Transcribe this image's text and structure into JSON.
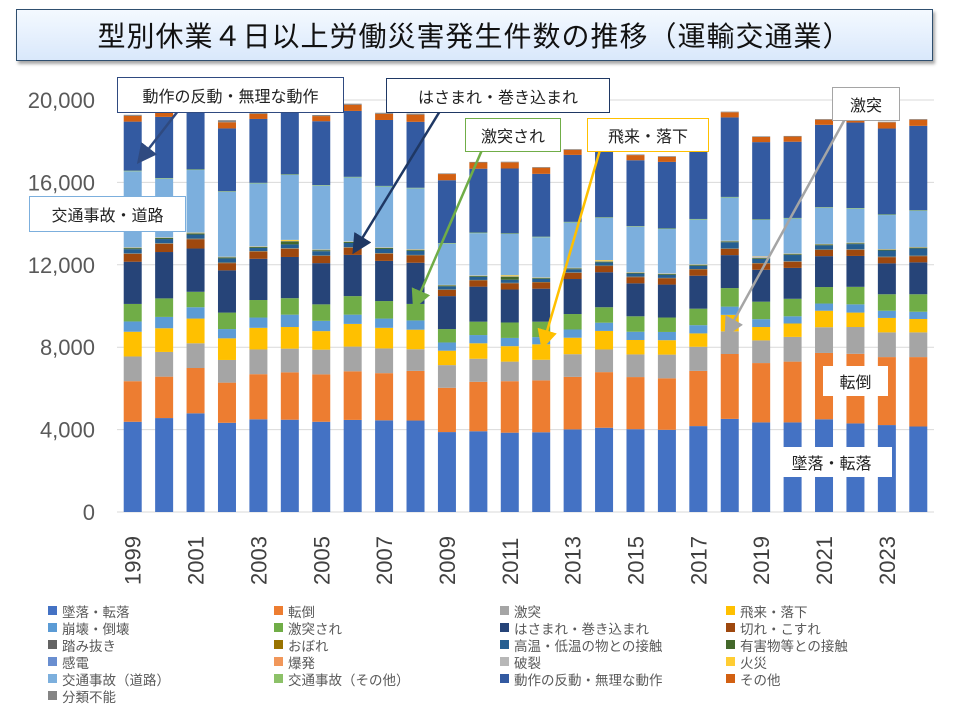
{
  "title": "型別休業４日以上労働災害発生件数の推移（運輸交通業）",
  "chart_data": {
    "type": "bar",
    "stacked": true,
    "title": "型別休業４日以上労働災害発生件数の推移（運輸交通業）",
    "xlabel": "",
    "ylabel": "",
    "ylim": [
      0,
      20000
    ],
    "yticks": [
      "0",
      "4,000",
      "8,000",
      "12,000",
      "16,000",
      "20,000"
    ],
    "ytick_values": [
      0,
      4000,
      8000,
      12000,
      16000,
      20000
    ],
    "grid": true,
    "legend_position": "bottom",
    "categories": [
      "1999",
      "2000",
      "2001",
      "2002",
      "2003",
      "2004",
      "2005",
      "2006",
      "2007",
      "2008",
      "2009",
      "2010",
      "2011",
      "2012",
      "2013",
      "2014",
      "2015",
      "2016",
      "2017",
      "2018",
      "2019",
      "2020",
      "2021",
      "2022",
      "2023",
      "2024"
    ],
    "xtick_labels": [
      "1999",
      "",
      "2001",
      "",
      "2003",
      "",
      "2005",
      "",
      "2007",
      "",
      "2009",
      "",
      "2011",
      "",
      "2013",
      "",
      "2015",
      "",
      "2017",
      "",
      "2019",
      "",
      "2021",
      "",
      "2023",
      ""
    ],
    "series": [
      {
        "name": "墜落・転落",
        "color": "#4472c4",
        "values": [
          4380,
          4560,
          4790,
          4330,
          4500,
          4480,
          4380,
          4470,
          4450,
          4440,
          3880,
          3920,
          3850,
          3870,
          4010,
          4090,
          4020,
          3990,
          4170,
          4520,
          4350,
          4350,
          4500,
          4300,
          4220,
          4150
        ]
      },
      {
        "name": "転倒",
        "color": "#ed7d31",
        "values": [
          1970,
          2010,
          2200,
          1950,
          2190,
          2300,
          2300,
          2360,
          2290,
          2410,
          2150,
          2400,
          2500,
          2520,
          2550,
          2700,
          2530,
          2500,
          2680,
          3150,
          2880,
          2950,
          3220,
          3380,
          3300,
          3370
        ]
      },
      {
        "name": "激突",
        "color": "#a5a5a5",
        "values": [
          1200,
          1200,
          1200,
          1100,
          1200,
          1150,
          1200,
          1200,
          1200,
          1050,
          1100,
          1120,
          950,
          1000,
          1100,
          1100,
          1100,
          1150,
          1170,
          1100,
          1100,
          1200,
          1250,
          1300,
          1200,
          1200
        ]
      },
      {
        "name": "飛来・落下",
        "color": "#ffc000",
        "values": [
          1200,
          1150,
          1200,
          1050,
          1050,
          1050,
          900,
          1100,
          1000,
          950,
          700,
          750,
          750,
          750,
          800,
          900,
          700,
          700,
          650,
          800,
          650,
          650,
          800,
          700,
          700,
          650
        ]
      },
      {
        "name": "崩壊・倒壊",
        "color": "#5b9bd5",
        "values": [
          500,
          550,
          550,
          450,
          500,
          600,
          500,
          450,
          450,
          450,
          400,
          400,
          400,
          350,
          400,
          400,
          400,
          400,
          400,
          400,
          380,
          350,
          350,
          400,
          350,
          350
        ]
      },
      {
        "name": "激突され",
        "color": "#70ad47",
        "values": [
          850,
          900,
          750,
          800,
          850,
          800,
          800,
          900,
          850,
          800,
          650,
          650,
          750,
          750,
          750,
          750,
          750,
          700,
          800,
          900,
          850,
          850,
          800,
          850,
          800,
          850
        ]
      },
      {
        "name": "はさまれ・巻き込まれ",
        "color": "#264478",
        "values": [
          2050,
          2250,
          2100,
          2050,
          2000,
          2000,
          2000,
          2000,
          1950,
          2000,
          1600,
          1700,
          1600,
          1600,
          1700,
          1700,
          1600,
          1600,
          1600,
          1600,
          1550,
          1500,
          1500,
          1500,
          1500,
          1550
        ]
      },
      {
        "name": "切れ・こすれ",
        "color": "#9e480e",
        "values": [
          380,
          400,
          450,
          350,
          350,
          400,
          350,
          350,
          350,
          350,
          300,
          300,
          300,
          300,
          300,
          300,
          300,
          300,
          300,
          300,
          300,
          300,
          300,
          300,
          300,
          300
        ]
      },
      {
        "name": "踏み抜き",
        "color": "#636363",
        "values": [
          20,
          20,
          20,
          20,
          20,
          20,
          20,
          20,
          20,
          20,
          15,
          15,
          15,
          15,
          15,
          15,
          15,
          15,
          15,
          15,
          15,
          15,
          15,
          15,
          15,
          15
        ]
      },
      {
        "name": "おぼれ",
        "color": "#997300",
        "values": [
          10,
          10,
          10,
          10,
          10,
          10,
          10,
          10,
          10,
          10,
          10,
          10,
          10,
          10,
          10,
          10,
          10,
          10,
          10,
          10,
          10,
          10,
          10,
          10,
          10,
          10
        ]
      },
      {
        "name": "高温・低温の物との接触",
        "color": "#255e91",
        "values": [
          200,
          200,
          200,
          200,
          150,
          180,
          200,
          200,
          200,
          200,
          150,
          150,
          150,
          150,
          150,
          150,
          150,
          150,
          150,
          300,
          200,
          300,
          200,
          250,
          300,
          350
        ]
      },
      {
        "name": "有害物等との接触",
        "color": "#43682b",
        "values": [
          50,
          50,
          50,
          50,
          50,
          150,
          50,
          50,
          50,
          50,
          40,
          40,
          150,
          40,
          40,
          40,
          40,
          40,
          40,
          40,
          40,
          40,
          40,
          40,
          40,
          40
        ]
      },
      {
        "name": "感電",
        "color": "#698ed0",
        "values": [
          5,
          5,
          5,
          5,
          5,
          5,
          5,
          5,
          5,
          5,
          5,
          5,
          5,
          5,
          5,
          5,
          5,
          5,
          5,
          5,
          5,
          5,
          5,
          5,
          5,
          5
        ]
      },
      {
        "name": "爆発",
        "color": "#f1975a",
        "values": [
          5,
          5,
          5,
          5,
          5,
          5,
          5,
          5,
          5,
          5,
          5,
          5,
          5,
          5,
          5,
          5,
          5,
          5,
          5,
          5,
          5,
          5,
          5,
          5,
          5,
          5
        ]
      },
      {
        "name": "破裂",
        "color": "#b7b7b7",
        "values": [
          10,
          10,
          10,
          10,
          10,
          10,
          10,
          10,
          10,
          10,
          10,
          10,
          10,
          10,
          10,
          10,
          10,
          10,
          10,
          10,
          80,
          10,
          10,
          10,
          10,
          10
        ]
      },
      {
        "name": "火災",
        "color": "#ffcd33",
        "values": [
          10,
          10,
          20,
          10,
          10,
          50,
          10,
          10,
          10,
          10,
          10,
          10,
          50,
          10,
          10,
          50,
          10,
          10,
          10,
          10,
          10,
          10,
          10,
          10,
          10,
          10
        ]
      },
      {
        "name": "交通事故（道路）",
        "color": "#7cafdd",
        "values": [
          3700,
          2850,
          3040,
          3150,
          3050,
          3150,
          3100,
          3100,
          2950,
          2950,
          2000,
          2050,
          2000,
          1950,
          2200,
          2050,
          2200,
          2150,
          2180,
          2100,
          1750,
          1700,
          1750,
          1650,
          1650,
          1750
        ]
      },
      {
        "name": "交通事故（その他）",
        "color": "#8cc168",
        "values": [
          30,
          30,
          30,
          30,
          30,
          30,
          30,
          30,
          30,
          30,
          30,
          30,
          30,
          30,
          30,
          30,
          30,
          30,
          30,
          30,
          30,
          30,
          30,
          30,
          30,
          30
        ]
      },
      {
        "name": "動作の反動・無理な動作",
        "color": "#335aa1",
        "values": [
          2380,
          2970,
          3000,
          3050,
          3100,
          3250,
          3100,
          3200,
          3200,
          3200,
          3050,
          3100,
          3150,
          3050,
          3250,
          3200,
          3200,
          3230,
          3270,
          3860,
          3750,
          3700,
          4000,
          4150,
          4170,
          4100
        ]
      },
      {
        "name": "その他",
        "color": "#d26012",
        "values": [
          280,
          350,
          300,
          300,
          250,
          300,
          250,
          300,
          300,
          350,
          300,
          300,
          300,
          300,
          250,
          250,
          250,
          250,
          250,
          250,
          250,
          250,
          250,
          300,
          300,
          300
        ]
      },
      {
        "name": "分類不能",
        "color": "#848484",
        "values": [
          50,
          100,
          100,
          100,
          100,
          100,
          50,
          50,
          50,
          50,
          30,
          30,
          30,
          30,
          30,
          30,
          30,
          30,
          30,
          30,
          30,
          30,
          30,
          30,
          30,
          30
        ]
      }
    ],
    "annotations": [
      {
        "text": "動作の反動・無理な動作",
        "target_series": "動作の反動・無理な動作",
        "color": "#2f4a80"
      },
      {
        "text": "はさまれ・巻き込まれ",
        "target_series": "はさまれ・巻き込まれ",
        "color": "#1f3864"
      },
      {
        "text": "激突され",
        "target_series": "激突され",
        "color": "#70ad47"
      },
      {
        "text": "飛来・落下",
        "target_series": "飛来・落下",
        "color": "#ffc000"
      },
      {
        "text": "激突",
        "target_series": "激突",
        "color": "#a5a5a5"
      },
      {
        "text": "交通事故・道路",
        "target_series": "交通事故（道路）",
        "color": "#7cafdd"
      },
      {
        "text": "転倒",
        "target_series": "転倒",
        "color": "#ffffff"
      },
      {
        "text": "墜落・転落",
        "target_series": "墜落・転落",
        "color": "#ffffff"
      }
    ]
  },
  "legend_order": [
    "墜落・転落",
    "転倒",
    "激突",
    "飛来・落下",
    "崩壊・倒壊",
    "激突され",
    "はさまれ・巻き込まれ",
    "切れ・こすれ",
    "踏み抜き",
    "おぼれ",
    "高温・低温の物との接触",
    "有害物等との接触",
    "感電",
    "爆発",
    "破裂",
    "火災",
    "交通事故（道路）",
    "交通事故（その他）",
    "動作の反動・無理な動作",
    "その他",
    "分類不能"
  ]
}
